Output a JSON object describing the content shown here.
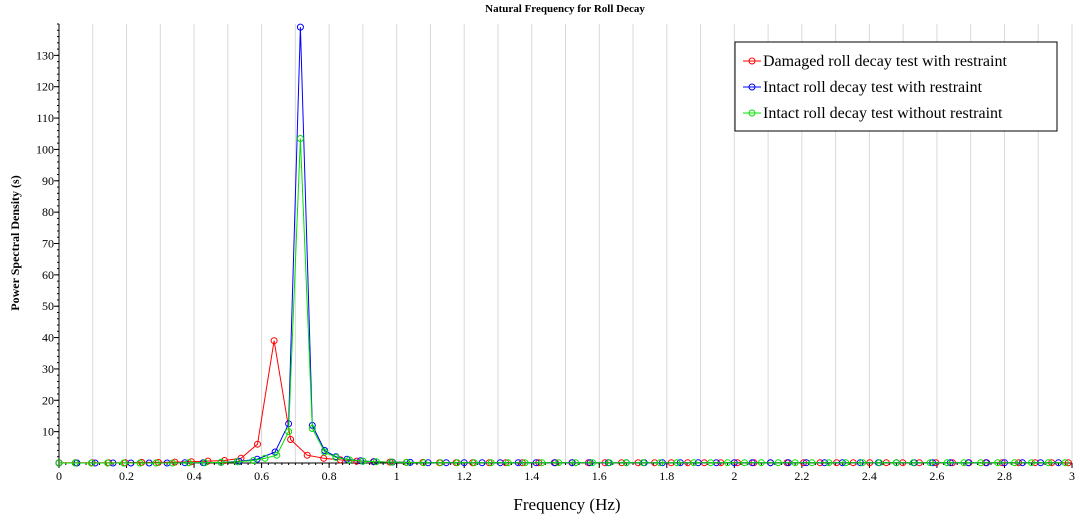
{
  "chart_data": {
    "type": "line",
    "title": "Natural Frequency for Roll Decay",
    "xlabel": "Frequency (Hz)",
    "ylabel": "Power Spectral Density (s)",
    "xlim": [
      0,
      3.0
    ],
    "ylim": [
      0,
      140
    ],
    "x_ticks": [
      0,
      0.2,
      0.4,
      0.6,
      0.8,
      1,
      1.2,
      1.4,
      1.6,
      1.8,
      2,
      2.2,
      2.4,
      2.6,
      2.8,
      3
    ],
    "x_tick_labels": [
      "0",
      "0.2",
      "0.4",
      "0.6",
      "0.8",
      "1",
      "1.2",
      "1.4",
      "1.6",
      "1.8",
      "2",
      "2.2",
      "2.4",
      "2.6",
      "2.8",
      "3"
    ],
    "y_ticks": [
      10,
      20,
      30,
      40,
      50,
      60,
      70,
      80,
      90,
      100,
      110,
      120,
      130
    ],
    "y_tick_labels": [
      "10",
      "20",
      "30",
      "40",
      "50",
      "60",
      "70",
      "80",
      "90",
      "100",
      "110",
      "120",
      "130"
    ],
    "grid": "vertical",
    "legend_position": "top-right",
    "series": [
      {
        "name": "Damaged roll decay test with restraint",
        "color": "#ff0000",
        "x": [
          0,
          0.049,
          0.098,
          0.147,
          0.196,
          0.245,
          0.294,
          0.343,
          0.392,
          0.441,
          0.49,
          0.539,
          0.588,
          0.637,
          0.686,
          0.735,
          0.784,
          0.833,
          0.882,
          0.931,
          0.98,
          1.029,
          1.078,
          1.127,
          1.176,
          1.225,
          1.274,
          1.323,
          1.372,
          1.421,
          1.47,
          1.519,
          1.568,
          1.617,
          1.666,
          1.715,
          1.764,
          1.813,
          1.862,
          1.911,
          1.96,
          2.009,
          2.058,
          2.107,
          2.156,
          2.205,
          2.254,
          2.303,
          2.352,
          2.401,
          2.45,
          2.499,
          2.548,
          2.597,
          2.646,
          2.695,
          2.744,
          2.793,
          2.842,
          2.891,
          2.94,
          2.989
        ],
        "y": [
          0.1,
          0.1,
          0.1,
          0.1,
          0.1,
          0.2,
          0.2,
          0.3,
          0.4,
          0.6,
          0.8,
          1.5,
          6,
          39,
          7.5,
          2.5,
          1.5,
          1,
          0.6,
          0.4,
          0.3,
          0.2,
          0.2,
          0.1,
          0.1,
          0.1,
          0.1,
          0.1,
          0.1,
          0.1,
          0.1,
          0.1,
          0.1,
          0.1,
          0.1,
          0.1,
          0.1,
          0.1,
          0.1,
          0.1,
          0.1,
          0.1,
          0.1,
          0.1,
          0.1,
          0.1,
          0.1,
          0.1,
          0.1,
          0.1,
          0.1,
          0.1,
          0.1,
          0.1,
          0.1,
          0.1,
          0.1,
          0.1,
          0.1,
          0.1,
          0.1,
          0.1
        ]
      },
      {
        "name": "Intact roll decay test with restraint",
        "color": "#0000ff",
        "x": [
          0,
          0.053,
          0.107,
          0.16,
          0.213,
          0.267,
          0.32,
          0.373,
          0.427,
          0.48,
          0.533,
          0.587,
          0.64,
          0.68,
          0.715,
          0.75,
          0.787,
          0.82,
          0.853,
          0.893,
          0.933,
          0.987,
          1.04,
          1.093,
          1.147,
          1.2,
          1.253,
          1.307,
          1.36,
          1.413,
          1.467,
          1.52,
          1.573,
          1.627,
          1.68,
          1.733,
          1.787,
          1.84,
          1.893,
          1.947,
          2,
          2.053,
          2.107,
          2.16,
          2.213,
          2.267,
          2.32,
          2.373,
          2.427,
          2.48,
          2.533,
          2.587,
          2.64,
          2.693,
          2.747,
          2.8,
          2.853,
          2.907,
          2.96
        ],
        "y": [
          0,
          0,
          0,
          0,
          0,
          0,
          0,
          0.1,
          0.1,
          0.2,
          0.5,
          1.2,
          3.5,
          12.5,
          139,
          12,
          4,
          2,
          1.2,
          0.7,
          0.4,
          0.3,
          0.2,
          0.1,
          0.1,
          0.1,
          0.1,
          0.1,
          0.1,
          0.1,
          0.1,
          0.1,
          0.1,
          0.1,
          0.1,
          0.1,
          0.1,
          0.1,
          0.1,
          0.1,
          0.1,
          0.1,
          0.1,
          0.1,
          0.1,
          0.1,
          0.1,
          0.1,
          0.1,
          0.1,
          0.1,
          0.1,
          0.1,
          0.1,
          0.1,
          0.1,
          0.1,
          0.1,
          0.1
        ]
      },
      {
        "name": "Intact roll decay test without restraint",
        "color": "#00e000",
        "x": [
          0,
          0.048,
          0.096,
          0.144,
          0.192,
          0.24,
          0.288,
          0.336,
          0.384,
          0.432,
          0.48,
          0.528,
          0.576,
          0.61,
          0.645,
          0.68,
          0.715,
          0.75,
          0.787,
          0.82,
          0.86,
          0.9,
          0.94,
          0.985,
          1.03,
          1.08,
          1.13,
          1.18,
          1.23,
          1.28,
          1.33,
          1.38,
          1.43,
          1.48,
          1.53,
          1.58,
          1.63,
          1.68,
          1.73,
          1.78,
          1.83,
          1.88,
          1.93,
          1.98,
          2.03,
          2.08,
          2.13,
          2.18,
          2.23,
          2.28,
          2.33,
          2.38,
          2.43,
          2.48,
          2.53,
          2.58,
          2.63,
          2.68,
          2.73,
          2.78,
          2.83,
          2.88,
          2.93,
          2.98
        ],
        "y": [
          0,
          0,
          0,
          0,
          0,
          0,
          0,
          0,
          0.1,
          0.1,
          0.2,
          0.4,
          0.8,
          1.5,
          2.5,
          10,
          103.5,
          11,
          3.5,
          1.8,
          1,
          0.6,
          0.4,
          0.3,
          0.2,
          0.1,
          0.1,
          0.1,
          0.1,
          0.1,
          0.1,
          0.1,
          0.1,
          0.1,
          0.1,
          0.1,
          0.1,
          0.1,
          0.1,
          0.1,
          0.1,
          0.1,
          0.1,
          0.1,
          0.1,
          0.1,
          0.1,
          0.1,
          0.1,
          0.1,
          0.1,
          0.1,
          0.1,
          0.1,
          0.1,
          0.1,
          0.1,
          0.1,
          0.1,
          0.1,
          0.1,
          0.1,
          0.1,
          0.1
        ]
      }
    ]
  }
}
